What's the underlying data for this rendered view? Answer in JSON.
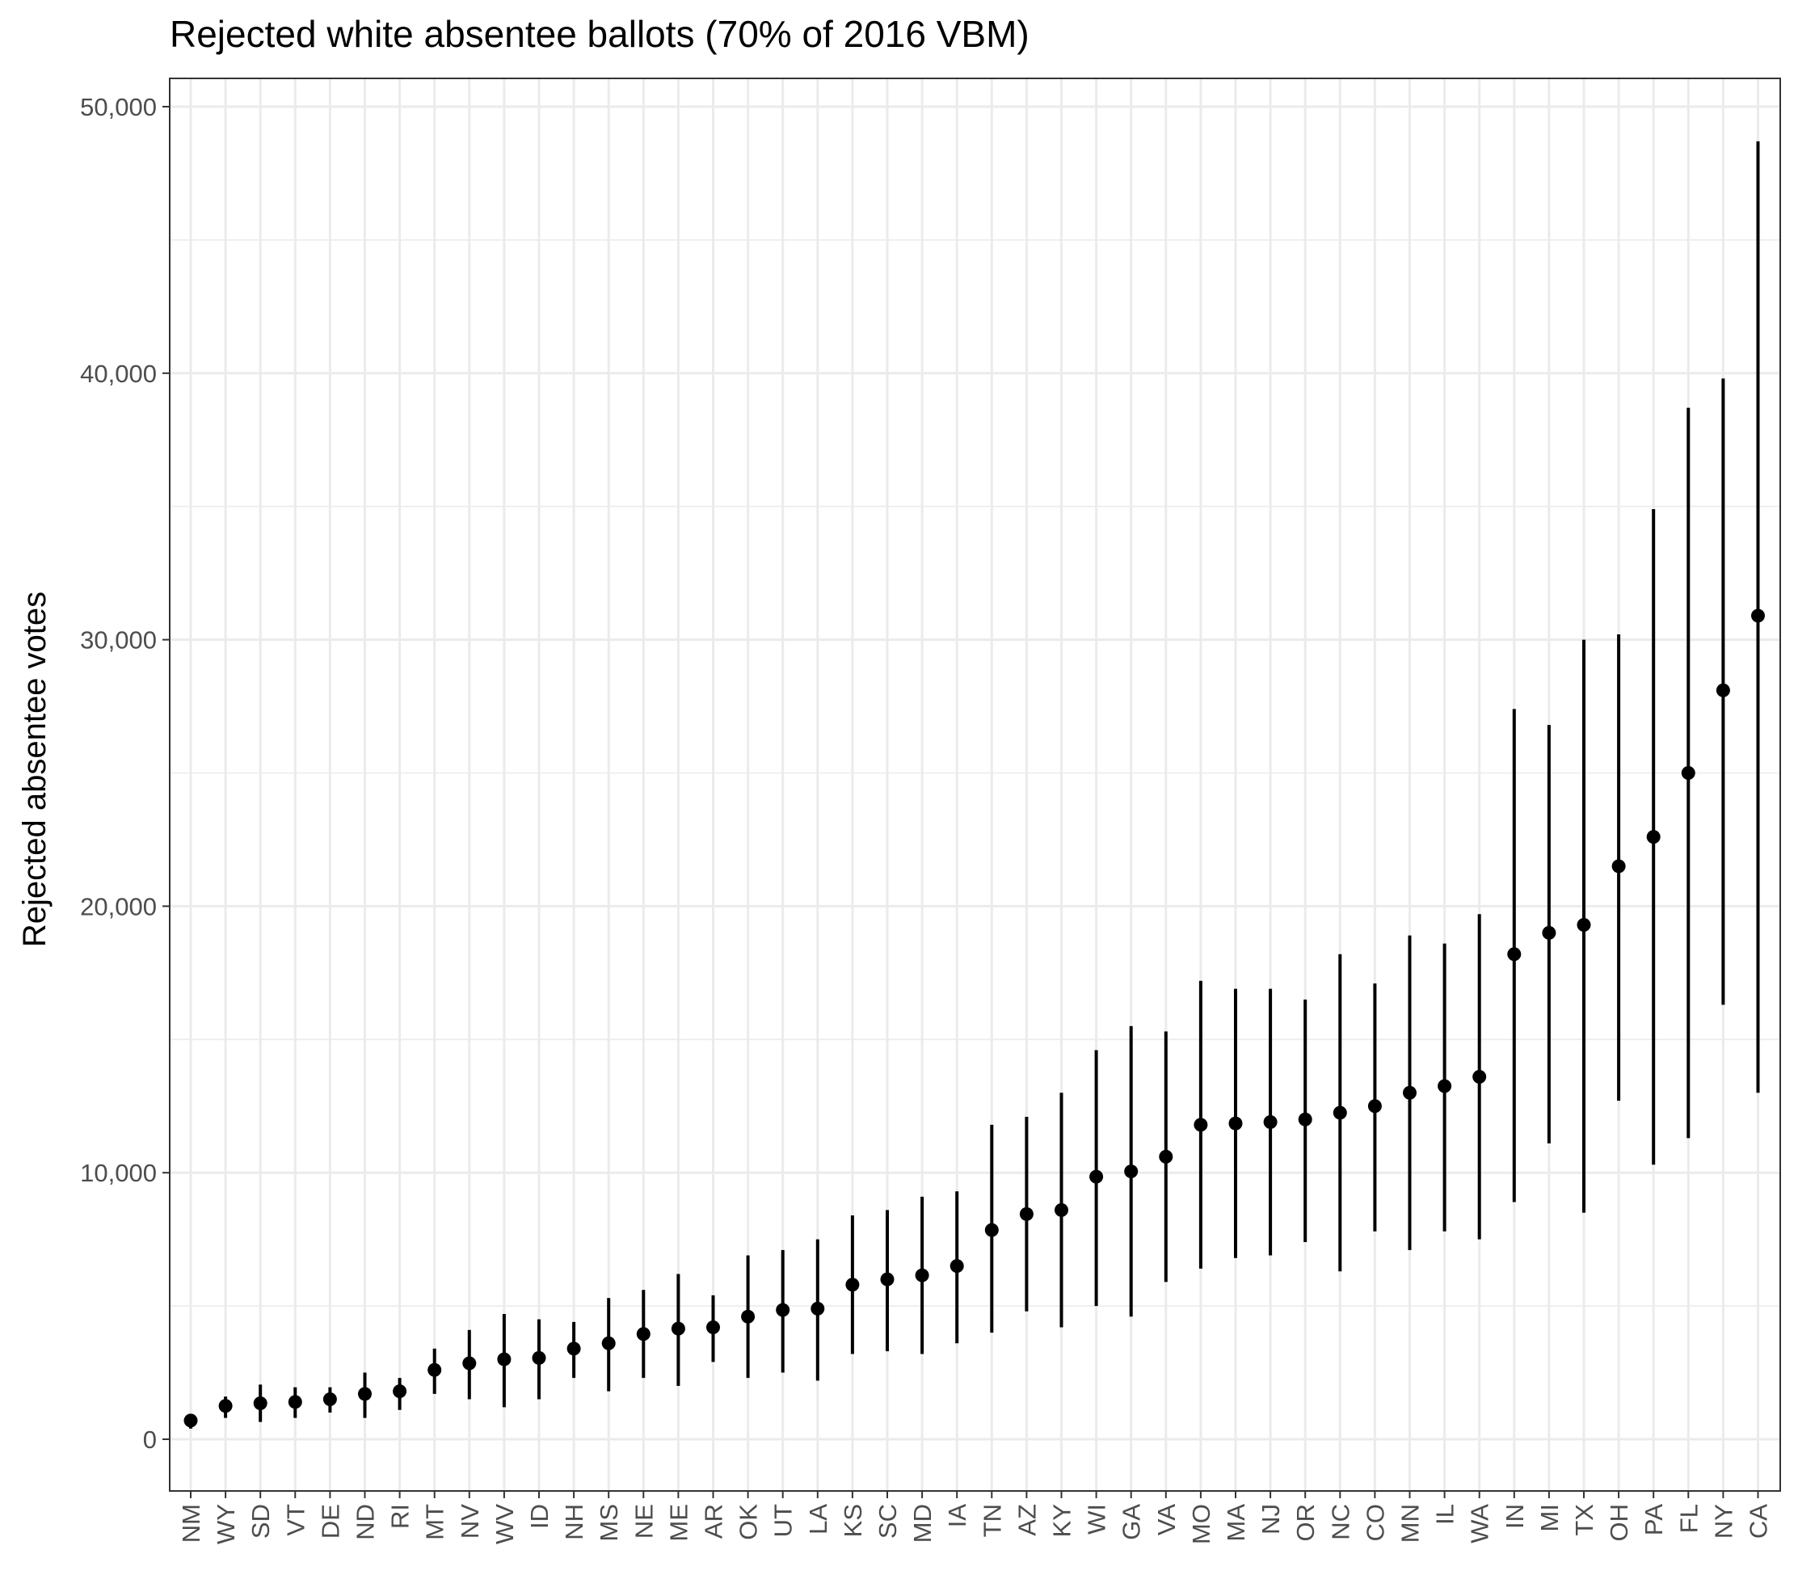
{
  "chart_data": {
    "type": "scatter",
    "subtype": "pointrange",
    "title": "Rejected white absentee ballots (70% of 2016 VBM)",
    "xlabel": "",
    "ylabel": "Rejected absentee votes",
    "ylim": [
      -1800,
      51000
    ],
    "yticks": [
      0,
      10000,
      20000,
      30000,
      40000,
      50000
    ],
    "ytick_labels": [
      "0",
      "10,000",
      "20,000",
      "30,000",
      "40,000",
      "50,000"
    ],
    "grid": true,
    "colors": {
      "point": "#000000",
      "grid": "#ebebeb",
      "border": "#333333",
      "text": "#4d4d4d"
    },
    "categories": [
      "NM",
      "WY",
      "SD",
      "VT",
      "DE",
      "ND",
      "RI",
      "MT",
      "NV",
      "WV",
      "ID",
      "NH",
      "MS",
      "NE",
      "ME",
      "AR",
      "OK",
      "UT",
      "LA",
      "KS",
      "SC",
      "MD",
      "IA",
      "TN",
      "AZ",
      "KY",
      "WI",
      "GA",
      "VA",
      "MO",
      "MA",
      "NJ",
      "OR",
      "NC",
      "CO",
      "MN",
      "IL",
      "WA",
      "IN",
      "MI",
      "TX",
      "OH",
      "PA",
      "FL",
      "NY",
      "CA"
    ],
    "values": [
      700,
      1250,
      1350,
      1400,
      1500,
      1700,
      1800,
      2600,
      2850,
      3000,
      3050,
      3400,
      3600,
      3950,
      4150,
      4200,
      4600,
      4850,
      4900,
      5800,
      6000,
      6150,
      6500,
      7850,
      8450,
      8600,
      9850,
      10050,
      10600,
      11800,
      11850,
      11900,
      12000,
      12250,
      12500,
      13000,
      13250,
      13600,
      18200,
      19000,
      19300,
      21500,
      22600,
      25000,
      28100,
      30900
    ],
    "lower": [
      400,
      800,
      650,
      800,
      1000,
      800,
      1100,
      1700,
      1500,
      1200,
      1500,
      2300,
      1800,
      2300,
      2000,
      2900,
      2300,
      2500,
      2200,
      3200,
      3300,
      3200,
      3600,
      4000,
      4800,
      4200,
      5000,
      4600,
      5900,
      6400,
      6800,
      6900,
      7400,
      6300,
      7800,
      7100,
      7800,
      7500,
      8900,
      11100,
      8500,
      12700,
      10300,
      11300,
      16300,
      13000
    ],
    "upper": [
      900,
      1600,
      2050,
      1950,
      1950,
      2500,
      2300,
      3400,
      4100,
      4700,
      4500,
      4400,
      5300,
      5600,
      6200,
      5400,
      6900,
      7100,
      7500,
      8400,
      8600,
      9100,
      9300,
      11800,
      12100,
      13000,
      14600,
      15500,
      15300,
      17200,
      16900,
      16900,
      16500,
      18200,
      17100,
      18900,
      18600,
      19700,
      27400,
      26800,
      30000,
      30200,
      34900,
      38700,
      39800,
      48700
    ]
  }
}
